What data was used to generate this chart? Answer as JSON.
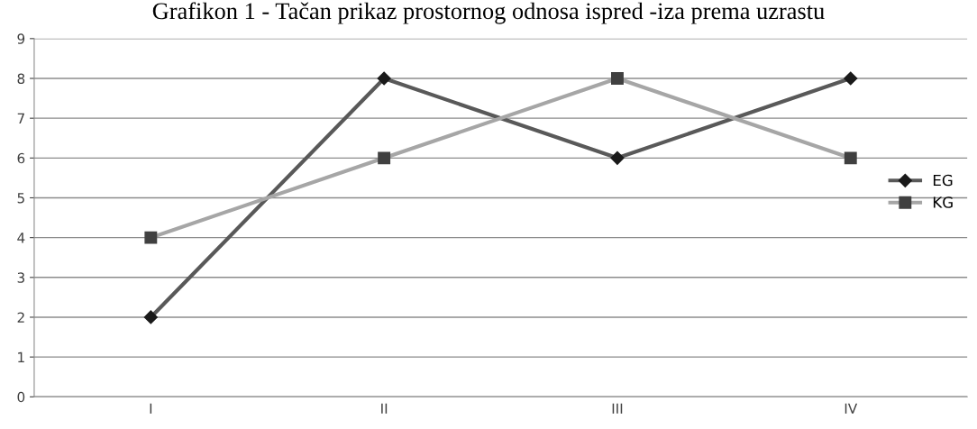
{
  "chart_data": {
    "type": "line",
    "title": "Grafikon 1 - Tačan prikaz prostornog odnosa ispred -iza prema uzrastu",
    "categories": [
      "I",
      "II",
      "III",
      "IV"
    ],
    "series": [
      {
        "name": "EG",
        "color": "#595959",
        "marker": "diamond",
        "values": [
          2,
          8,
          6,
          8
        ]
      },
      {
        "name": "KG",
        "color": "#a6a6a6",
        "marker": "square",
        "values": [
          4,
          6,
          8,
          6
        ]
      }
    ],
    "ylim": [
      0,
      9
    ],
    "yticks": [
      0,
      1,
      2,
      3,
      4,
      5,
      6,
      7,
      8,
      9
    ],
    "grid": "y",
    "legend": "right"
  }
}
